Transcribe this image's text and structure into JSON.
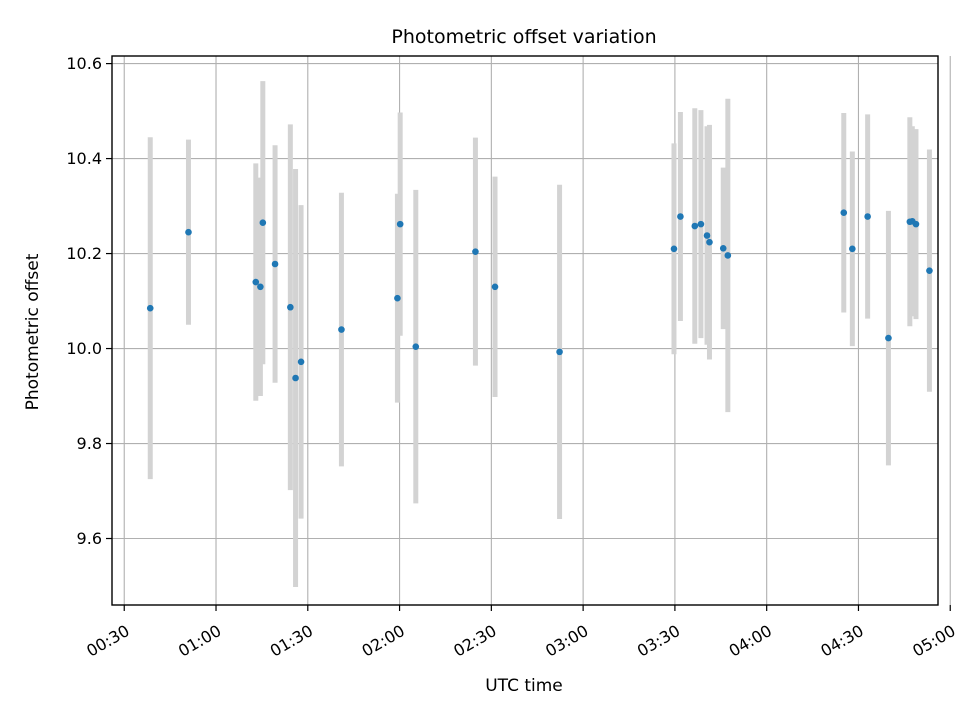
{
  "chart_data": {
    "type": "scatter",
    "title": "Photometric offset variation",
    "xlabel": "UTC time",
    "ylabel": "Photometric offset",
    "x_unit": "minutes since 00:00 UTC",
    "xlim": [
      26,
      296
    ],
    "ylim": [
      9.46,
      10.616
    ],
    "grid": true,
    "x_ticks": [
      {
        "value": 30,
        "label": "00:30"
      },
      {
        "value": 60,
        "label": "01:00"
      },
      {
        "value": 90,
        "label": "01:30"
      },
      {
        "value": 120,
        "label": "02:00"
      },
      {
        "value": 150,
        "label": "02:30"
      },
      {
        "value": 180,
        "label": "03:00"
      },
      {
        "value": 210,
        "label": "03:30"
      },
      {
        "value": 240,
        "label": "04:00"
      },
      {
        "value": 270,
        "label": "04:30"
      },
      {
        "value": 300,
        "label": "05:00"
      }
    ],
    "y_ticks": [
      {
        "value": 9.6,
        "label": "9.6"
      },
      {
        "value": 9.8,
        "label": "9.8"
      },
      {
        "value": 10.0,
        "label": "10.0"
      },
      {
        "value": 10.2,
        "label": "10.2"
      },
      {
        "value": 10.4,
        "label": "10.4"
      },
      {
        "value": 10.6,
        "label": "10.6"
      }
    ],
    "series": [
      {
        "name": "offset",
        "marker_color": "#1f77b4",
        "errorbar_color": "#d3d3d3",
        "points": [
          {
            "x": 38.5,
            "y": 10.085,
            "err": 0.36
          },
          {
            "x": 51.0,
            "y": 10.245,
            "err": 0.195
          },
          {
            "x": 73.0,
            "y": 10.14,
            "err": 0.25
          },
          {
            "x": 74.5,
            "y": 10.13,
            "err": 0.23
          },
          {
            "x": 75.3,
            "y": 10.265,
            "err": 0.298
          },
          {
            "x": 79.3,
            "y": 10.178,
            "err": 0.25
          },
          {
            "x": 84.3,
            "y": 10.087,
            "err": 0.385
          },
          {
            "x": 86.0,
            "y": 9.938,
            "err": 0.44
          },
          {
            "x": 87.8,
            "y": 9.972,
            "err": 0.33
          },
          {
            "x": 101.0,
            "y": 10.04,
            "err": 0.288
          },
          {
            "x": 119.3,
            "y": 10.106,
            "err": 0.22
          },
          {
            "x": 120.2,
            "y": 10.262,
            "err": 0.235
          },
          {
            "x": 125.3,
            "y": 10.004,
            "err": 0.33
          },
          {
            "x": 144.8,
            "y": 10.204,
            "err": 0.24
          },
          {
            "x": 151.2,
            "y": 10.13,
            "err": 0.232
          },
          {
            "x": 172.3,
            "y": 9.993,
            "err": 0.352
          },
          {
            "x": 209.7,
            "y": 10.21,
            "err": 0.222
          },
          {
            "x": 211.8,
            "y": 10.278,
            "err": 0.22
          },
          {
            "x": 216.5,
            "y": 10.258,
            "err": 0.248
          },
          {
            "x": 218.5,
            "y": 10.262,
            "err": 0.24
          },
          {
            "x": 220.5,
            "y": 10.238,
            "err": 0.23
          },
          {
            "x": 221.3,
            "y": 10.224,
            "err": 0.247
          },
          {
            "x": 225.8,
            "y": 10.211,
            "err": 0.17
          },
          {
            "x": 227.3,
            "y": 10.196,
            "err": 0.33
          },
          {
            "x": 265.2,
            "y": 10.286,
            "err": 0.21
          },
          {
            "x": 268.0,
            "y": 10.21,
            "err": 0.205
          },
          {
            "x": 273.0,
            "y": 10.278,
            "err": 0.215
          },
          {
            "x": 279.8,
            "y": 10.022,
            "err": 0.268
          },
          {
            "x": 286.8,
            "y": 10.267,
            "err": 0.22
          },
          {
            "x": 287.6,
            "y": 10.268,
            "err": 0.2
          },
          {
            "x": 288.8,
            "y": 10.262,
            "err": 0.2
          },
          {
            "x": 293.2,
            "y": 10.164,
            "err": 0.255
          }
        ]
      }
    ]
  }
}
